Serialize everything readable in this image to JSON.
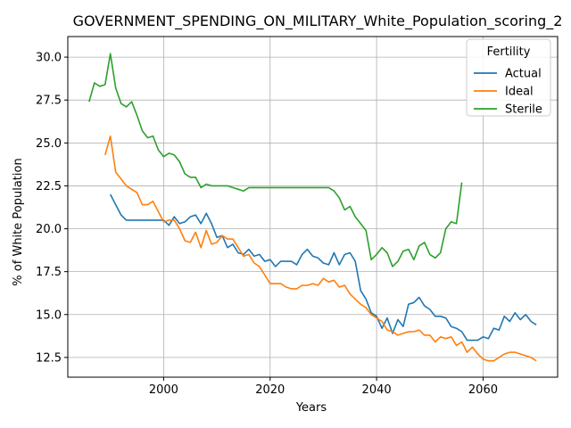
{
  "chart_data": {
    "type": "line",
    "title": "GOVERNMENT_SPENDING_ON_MILITARY_White_Population_scoring_2",
    "xlabel": "Years",
    "ylabel": "% of White Population",
    "xlim": [
      1982,
      2074
    ],
    "ylim": [
      11.35,
      31.2
    ],
    "xticks": [
      2000,
      2020,
      2040,
      2060
    ],
    "yticks": [
      12.5,
      15.0,
      17.5,
      20.0,
      22.5,
      25.0,
      27.5,
      30.0
    ],
    "ytick_labels": [
      "12.5",
      "15.0",
      "17.5",
      "20.0",
      "22.5",
      "25.0",
      "27.5",
      "30.0"
    ],
    "grid": true,
    "legend": {
      "title": "Fertility",
      "position": "top-right"
    },
    "series": [
      {
        "name": "Actual",
        "color": "#1f77b4",
        "x": [
          1990,
          1991,
          1992,
          1993,
          1994,
          1995,
          1996,
          1997,
          1998,
          1999,
          2000,
          2001,
          2002,
          2003,
          2004,
          2005,
          2006,
          2007,
          2008,
          2009,
          2010,
          2011,
          2012,
          2013,
          2014,
          2015,
          2016,
          2017,
          2018,
          2019,
          2020,
          2021,
          2022,
          2023,
          2024,
          2025,
          2026,
          2027,
          2028,
          2029,
          2030,
          2031,
          2032,
          2033,
          2034,
          2035,
          2036,
          2037,
          2038,
          2039,
          2040,
          2041,
          2042,
          2043,
          2044,
          2045,
          2046,
          2047,
          2048,
          2049,
          2050,
          2051,
          2052,
          2053,
          2054,
          2055,
          2056,
          2057,
          2058,
          2059,
          2060,
          2061,
          2062,
          2063,
          2064,
          2065,
          2066,
          2067,
          2068,
          2069,
          2070
        ],
        "values": [
          22.0,
          21.4,
          20.8,
          20.5,
          20.5,
          20.5,
          20.5,
          20.5,
          20.5,
          20.5,
          20.5,
          20.2,
          20.7,
          20.3,
          20.4,
          20.7,
          20.8,
          20.3,
          20.9,
          20.3,
          19.5,
          19.6,
          18.9,
          19.1,
          18.6,
          18.5,
          18.8,
          18.4,
          18.5,
          18.1,
          18.2,
          17.8,
          18.1,
          18.1,
          18.1,
          17.9,
          18.5,
          18.8,
          18.4,
          18.3,
          18.0,
          17.9,
          18.6,
          17.9,
          18.5,
          18.6,
          18.1,
          16.4,
          15.9,
          15.1,
          14.9,
          14.2,
          14.8,
          13.9,
          14.7,
          14.3,
          15.6,
          15.7,
          16.0,
          15.5,
          15.3,
          14.9,
          14.9,
          14.8,
          14.3,
          14.2,
          14.0,
          13.5,
          13.5,
          13.5,
          13.7,
          13.6,
          14.2,
          14.1,
          14.9,
          14.6,
          15.1,
          14.7,
          15.0,
          14.6,
          14.4
        ]
      },
      {
        "name": "Ideal",
        "color": "#ff7f0e",
        "x": [
          1989,
          1990,
          1991,
          1992,
          1993,
          1994,
          1995,
          1996,
          1997,
          1998,
          1999,
          2000,
          2001,
          2002,
          2003,
          2004,
          2005,
          2006,
          2007,
          2008,
          2009,
          2010,
          2011,
          2012,
          2013,
          2014,
          2015,
          2016,
          2017,
          2018,
          2019,
          2020,
          2021,
          2022,
          2023,
          2024,
          2025,
          2026,
          2027,
          2028,
          2029,
          2030,
          2031,
          2032,
          2033,
          2034,
          2035,
          2036,
          2037,
          2038,
          2039,
          2040,
          2041,
          2042,
          2043,
          2044,
          2045,
          2046,
          2047,
          2048,
          2049,
          2050,
          2051,
          2052,
          2053,
          2054,
          2055,
          2056,
          2057,
          2058,
          2059,
          2060,
          2061,
          2062,
          2063,
          2064,
          2065,
          2066,
          2067,
          2068,
          2069,
          2070
        ],
        "values": [
          24.3,
          25.4,
          23.3,
          22.9,
          22.5,
          22.3,
          22.1,
          21.4,
          21.4,
          21.6,
          21.0,
          20.4,
          20.5,
          20.5,
          20.0,
          19.3,
          19.2,
          19.8,
          18.9,
          19.9,
          19.1,
          19.2,
          19.6,
          19.4,
          19.4,
          18.9,
          18.4,
          18.5,
          18.0,
          17.8,
          17.3,
          16.8,
          16.8,
          16.8,
          16.6,
          16.5,
          16.5,
          16.7,
          16.7,
          16.8,
          16.7,
          17.1,
          16.9,
          17.0,
          16.6,
          16.7,
          16.2,
          15.9,
          15.6,
          15.4,
          15.0,
          14.8,
          14.6,
          14.1,
          14.0,
          13.8,
          13.9,
          14.0,
          14.0,
          14.1,
          13.8,
          13.8,
          13.4,
          13.7,
          13.6,
          13.7,
          13.2,
          13.4,
          12.8,
          13.1,
          12.7,
          12.4,
          12.3,
          12.3,
          12.5,
          12.7,
          12.8,
          12.8,
          12.7,
          12.6,
          12.5,
          12.3
        ]
      },
      {
        "name": "Sterile",
        "color": "#2ca02c",
        "x": [
          1986,
          1987,
          1988,
          1989,
          1990,
          1991,
          1992,
          1993,
          1994,
          1995,
          1996,
          1997,
          1998,
          1999,
          2000,
          2001,
          2002,
          2003,
          2004,
          2005,
          2006,
          2007,
          2008,
          2009,
          2010,
          2011,
          2012,
          2013,
          2014,
          2015,
          2016,
          2017,
          2018,
          2019,
          2020,
          2021,
          2022,
          2023,
          2024,
          2025,
          2026,
          2027,
          2028,
          2029,
          2030,
          2031,
          2032,
          2033,
          2034,
          2035,
          2036,
          2037,
          2038,
          2039,
          2040,
          2041,
          2042,
          2043,
          2044,
          2045,
          2046,
          2047,
          2048,
          2049,
          2050,
          2051,
          2052,
          2053,
          2054,
          2055,
          2056
        ],
        "values": [
          27.4,
          28.5,
          28.3,
          28.4,
          30.2,
          28.2,
          27.3,
          27.1,
          27.4,
          26.6,
          25.7,
          25.3,
          25.4,
          24.6,
          24.2,
          24.4,
          24.3,
          23.9,
          23.2,
          23.0,
          23.0,
          22.4,
          22.6,
          22.5,
          22.5,
          22.5,
          22.5,
          22.4,
          22.3,
          22.2,
          22.4,
          22.4,
          22.4,
          22.4,
          22.4,
          22.4,
          22.4,
          22.4,
          22.4,
          22.4,
          22.4,
          22.4,
          22.4,
          22.4,
          22.4,
          22.4,
          22.2,
          21.8,
          21.1,
          21.3,
          20.7,
          20.3,
          19.9,
          18.2,
          18.5,
          18.9,
          18.6,
          17.8,
          18.1,
          18.7,
          18.8,
          18.2,
          19.0,
          19.2,
          18.5,
          18.3,
          18.6,
          20.0,
          20.4,
          20.3,
          22.7
        ]
      }
    ]
  }
}
